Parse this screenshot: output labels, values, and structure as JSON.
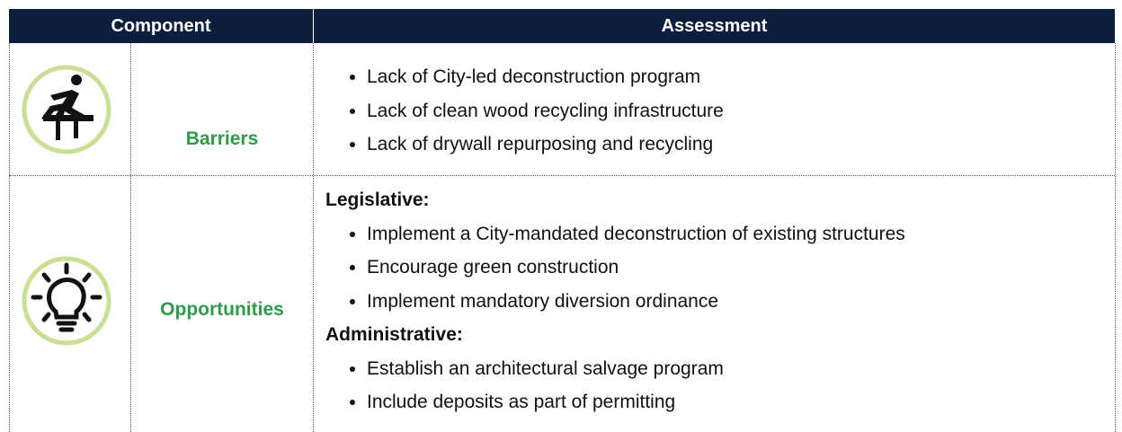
{
  "table": {
    "header": [
      "Component",
      "Assessment"
    ],
    "rows": [
      {
        "component": "Barriers",
        "groups": [
          {
            "items": [
              "Lack of City-led deconstruction program",
              "Lack of clean wood recycling infrastructure",
              "Lack of drywall repurposing and recycling"
            ]
          }
        ]
      },
      {
        "component": "Opportunities",
        "groups": [
          {
            "heading": "Legislative:",
            "items": [
              "Implement a City-mandated deconstruction of existing structures",
              "Encourage green construction",
              "Implement mandatory diversion ordinance"
            ]
          },
          {
            "heading": "Administrative:",
            "items": [
              "Establish an architectural salvage program",
              "Include deposits as part of permitting"
            ]
          }
        ]
      }
    ]
  }
}
